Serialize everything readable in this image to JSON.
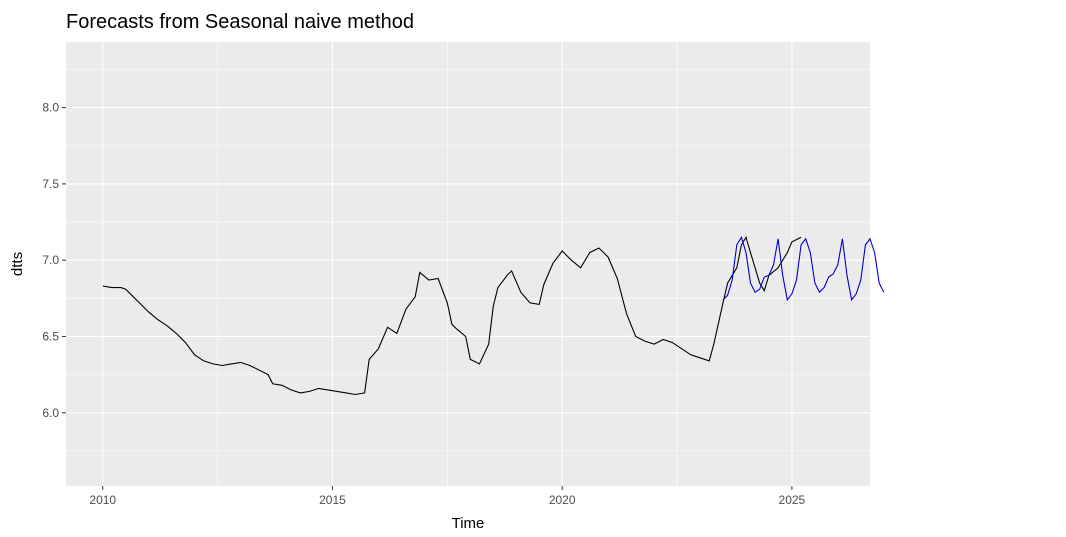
{
  "chart_data": {
    "type": "line",
    "title": "Forecasts from Seasonal naive method",
    "xlabel": "Time",
    "ylabel": "dtts",
    "xlim": [
      2009.2,
      2026.7
    ],
    "ylim": [
      5.52,
      8.43
    ],
    "x_ticks": [
      2010,
      2015,
      2020,
      2025
    ],
    "x_tick_labels": [
      "2010",
      "2015",
      "2020",
      "2025"
    ],
    "y_ticks": [
      6.0,
      6.5,
      7.0,
      7.5,
      8.0
    ],
    "y_tick_labels": [
      "6.0",
      "6.5",
      "7.0",
      "7.5",
      "8.0"
    ],
    "grid": true,
    "colors": {
      "panel_bg": "#ebebeb",
      "grid": "#ffffff",
      "history": "#000000",
      "forecast": "#0000cc",
      "band80": "#8080ee",
      "band95": "#c4c4f4"
    },
    "series": [
      {
        "type": "line",
        "points": [
          [
            2010.0,
            6.83
          ],
          [
            2010.2,
            6.82
          ],
          [
            2010.4,
            6.82
          ],
          [
            2010.5,
            6.81
          ],
          [
            2010.6,
            6.78
          ],
          [
            2010.8,
            6.72
          ],
          [
            2011.0,
            6.66
          ],
          [
            2011.2,
            6.61
          ],
          [
            2011.4,
            6.57
          ],
          [
            2011.6,
            6.52
          ],
          [
            2011.8,
            6.46
          ],
          [
            2012.0,
            6.38
          ],
          [
            2012.2,
            6.34
          ],
          [
            2012.4,
            6.32
          ],
          [
            2012.6,
            6.31
          ],
          [
            2012.8,
            6.32
          ],
          [
            2013.0,
            6.33
          ],
          [
            2013.2,
            6.31
          ],
          [
            2013.4,
            6.28
          ],
          [
            2013.6,
            6.25
          ],
          [
            2013.7,
            6.19
          ],
          [
            2013.9,
            6.18
          ],
          [
            2014.1,
            6.15
          ],
          [
            2014.3,
            6.13
          ],
          [
            2014.5,
            6.14
          ],
          [
            2014.7,
            6.16
          ],
          [
            2014.9,
            6.15
          ],
          [
            2015.1,
            6.14
          ],
          [
            2015.3,
            6.13
          ],
          [
            2015.5,
            6.12
          ],
          [
            2015.7,
            6.13
          ],
          [
            2015.8,
            6.35
          ],
          [
            2016.0,
            6.42
          ],
          [
            2016.2,
            6.56
          ],
          [
            2016.4,
            6.52
          ],
          [
            2016.6,
            6.68
          ],
          [
            2016.8,
            6.76
          ],
          [
            2016.9,
            6.92
          ],
          [
            2017.1,
            6.87
          ],
          [
            2017.3,
            6.88
          ],
          [
            2017.5,
            6.72
          ],
          [
            2017.6,
            6.58
          ],
          [
            2017.7,
            6.55
          ],
          [
            2017.9,
            6.5
          ],
          [
            2018.0,
            6.35
          ],
          [
            2018.2,
            6.32
          ],
          [
            2018.4,
            6.45
          ],
          [
            2018.5,
            6.7
          ],
          [
            2018.6,
            6.82
          ],
          [
            2018.8,
            6.9
          ],
          [
            2018.9,
            6.93
          ],
          [
            2019.1,
            6.79
          ],
          [
            2019.3,
            6.72
          ],
          [
            2019.5,
            6.71
          ],
          [
            2019.6,
            6.84
          ],
          [
            2019.8,
            6.98
          ],
          [
            2020.0,
            7.06
          ],
          [
            2020.1,
            7.03
          ],
          [
            2020.2,
            7.0
          ],
          [
            2020.4,
            6.95
          ],
          [
            2020.6,
            7.05
          ],
          [
            2020.8,
            7.08
          ],
          [
            2021.0,
            7.02
          ],
          [
            2021.2,
            6.88
          ],
          [
            2021.4,
            6.65
          ],
          [
            2021.6,
            6.5
          ],
          [
            2021.8,
            6.47
          ],
          [
            2022.0,
            6.45
          ],
          [
            2022.2,
            6.48
          ],
          [
            2022.4,
            6.46
          ],
          [
            2022.6,
            6.42
          ],
          [
            2022.8,
            6.38
          ],
          [
            2023.0,
            6.36
          ],
          [
            2023.2,
            6.34
          ],
          [
            2023.3,
            6.45
          ],
          [
            2023.5,
            6.72
          ],
          [
            2023.6,
            6.85
          ],
          [
            2023.8,
            6.95
          ],
          [
            2023.9,
            7.1
          ],
          [
            2024.0,
            7.15
          ],
          [
            2024.1,
            7.05
          ],
          [
            2024.3,
            6.85
          ],
          [
            2024.4,
            6.8
          ],
          [
            2024.5,
            6.9
          ],
          [
            2024.7,
            6.95
          ],
          [
            2024.9,
            7.05
          ],
          [
            2025.0,
            7.12
          ],
          [
            2025.2,
            7.15
          ]
        ]
      },
      {
        "type": "forecast",
        "points": [
          [
            2023.5,
            6.74
          ],
          [
            2023.6,
            6.77
          ],
          [
            2023.7,
            6.87
          ],
          [
            2023.8,
            7.1
          ],
          [
            2023.9,
            7.15
          ],
          [
            2024.0,
            7.05
          ],
          [
            2024.1,
            6.85
          ],
          [
            2024.2,
            6.79
          ],
          [
            2024.3,
            6.81
          ],
          [
            2024.4,
            6.89
          ],
          [
            2024.5,
            6.9
          ],
          [
            2024.6,
            6.97
          ],
          [
            2024.7,
            7.14
          ],
          [
            2024.8,
            6.9
          ],
          [
            2024.9,
            6.74
          ],
          [
            2025.0,
            6.78
          ],
          [
            2025.1,
            6.87
          ],
          [
            2025.2,
            7.1
          ],
          [
            2025.3,
            7.14
          ],
          [
            2025.4,
            7.05
          ],
          [
            2025.5,
            6.85
          ],
          [
            2025.6,
            6.79
          ],
          [
            2025.7,
            6.82
          ],
          [
            2025.8,
            6.89
          ],
          [
            2025.9,
            6.91
          ],
          [
            2026.0,
            6.97
          ],
          [
            2026.1,
            7.14
          ],
          [
            2026.2,
            6.9
          ],
          [
            2026.3,
            6.74
          ],
          [
            2026.4,
            6.78
          ],
          [
            2026.5,
            6.87
          ],
          [
            2026.6,
            7.1
          ],
          [
            2026.7,
            7.14
          ],
          [
            2026.8,
            7.05
          ],
          [
            2026.9,
            6.85
          ],
          [
            2027.0,
            6.79
          ]
        ]
      }
    ]
  }
}
